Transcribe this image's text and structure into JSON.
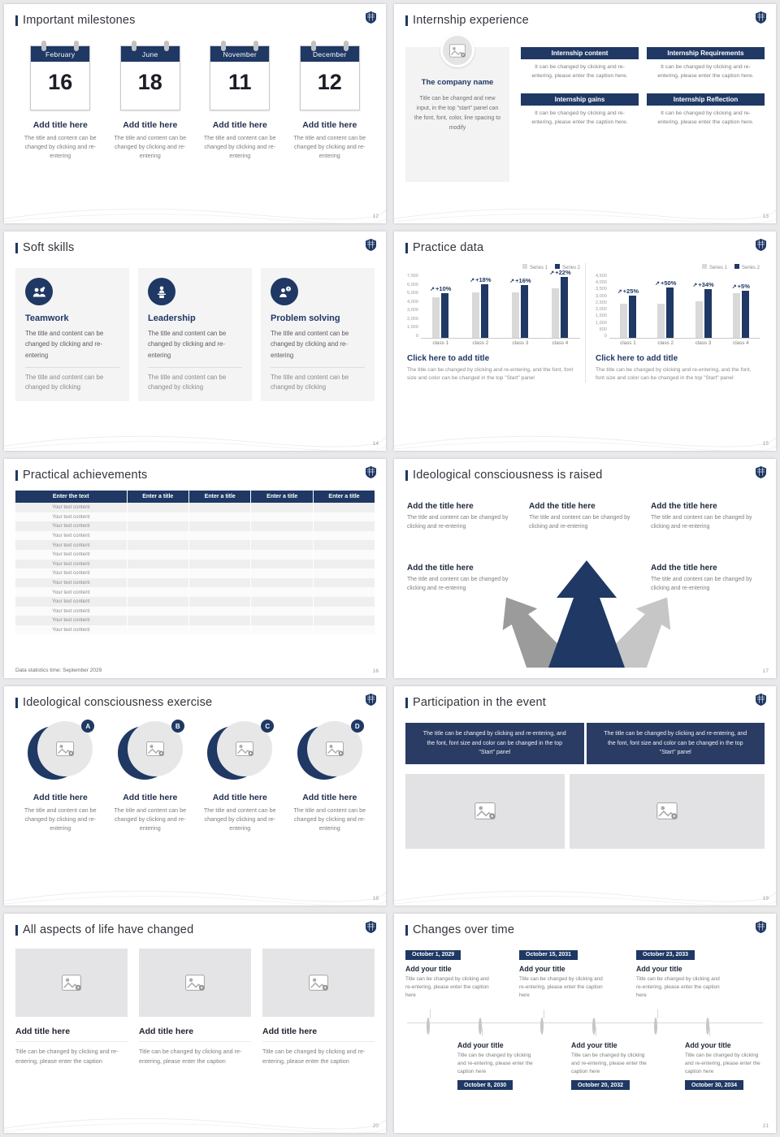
{
  "theme": {
    "navy": "#1f3864",
    "series1_color": "#d9d9d9",
    "series2_color": "#1f3864"
  },
  "slides": {
    "milestones": {
      "title": "Important milestones",
      "page": "12",
      "items": [
        {
          "month": "February",
          "day": "16",
          "heading": "Add title here",
          "caption": "The title and content can be changed by clicking and re-entering"
        },
        {
          "month": "June",
          "day": "18",
          "heading": "Add title here",
          "caption": "The title and content can be changed by clicking and re-entering"
        },
        {
          "month": "November",
          "day": "11",
          "heading": "Add title here",
          "caption": "The title and content can be changed by clicking and re-entering"
        },
        {
          "month": "December",
          "day": "12",
          "heading": "Add title here",
          "caption": "The title and content can be changed by clicking and re-entering"
        }
      ]
    },
    "internship": {
      "title": "Internship experience",
      "page": "13",
      "company_name": "The company name",
      "company_caption": "Title can be changed and new input, in the top \"start\" panel can the font, font, color, line spacing to modify",
      "blocks": [
        {
          "heading": "Internship content",
          "caption": "It can be changed by clicking and re-entering, please enter the caption here."
        },
        {
          "heading": "Internship Requirements",
          "caption": "It can be changed by clicking and re-entering, please enter the caption here."
        },
        {
          "heading": "Internship gains",
          "caption": "It can be changed by clicking and re-entering, please enter the caption here."
        },
        {
          "heading": "Internship Reflection",
          "caption": "It can be changed by clicking and re-entering, please enter the caption here."
        }
      ]
    },
    "soft_skills": {
      "title": "Soft skills",
      "page": "14",
      "cards": [
        {
          "icon": "teamwork-icon",
          "heading": "Teamwork",
          "body": "The title and content can be changed by clicking and re-entering",
          "note": "The title and content can be changed by clicking"
        },
        {
          "icon": "leadership-icon",
          "heading": "Leadership",
          "body": "The title and content can be changed by clicking and re-entering",
          "note": "The title and content can be changed by clicking"
        },
        {
          "icon": "problem-solving-icon",
          "heading": "Problem solving",
          "body": "The title and content can be changed by clicking and re-entering",
          "note": "The title and content can be changed by clicking"
        }
      ]
    },
    "practice_data": {
      "title": "Practice data",
      "page": "15",
      "chart_title": "Click here to add title",
      "chart_caption": "The title can be changed by clicking and re-entering, and the font, font size and color can be changed in the top \"Start\" panel"
    },
    "practical_achievements": {
      "title": "Practical achievements",
      "page": "16",
      "table": {
        "headers": [
          "Enter the text",
          "Enter a title",
          "Enter a title",
          "Enter a title",
          "Enter a title"
        ],
        "row_label": "Your text content",
        "row_count": 14
      },
      "note": "Data statistics time: September 2029"
    },
    "raised": {
      "title": "Ideological consciousness is raised",
      "page": "17",
      "heading": "Add the title here",
      "caption": "The title and content can be changed by clicking and re-entering"
    },
    "exercise": {
      "title": "Ideological consciousness exercise",
      "page": "18",
      "items": [
        {
          "letter": "A",
          "heading": "Add title here",
          "caption": "The title and content can be changed by clicking and re-entering"
        },
        {
          "letter": "B",
          "heading": "Add title here",
          "caption": "The title and content can be changed by clicking and re-entering"
        },
        {
          "letter": "C",
          "heading": "Add title here",
          "caption": "The title and content can be changed by clicking and re-entering"
        },
        {
          "letter": "D",
          "heading": "Add title here",
          "caption": "The title and content can be changed by clicking and re-entering"
        }
      ]
    },
    "participation": {
      "title": "Participation in the event",
      "page": "19",
      "block_text": "The title can be changed by clicking and re-entering, and the font, font size and color can be changed in the top \"Start\" panel"
    },
    "life_changed": {
      "title": "All aspects of life have changed",
      "page": "20",
      "items": [
        {
          "heading": "Add title here",
          "caption": "Title can be changed by clicking and re-entering, please enter the caption"
        },
        {
          "heading": "Add title here",
          "caption": "Title can be changed by clicking and re-entering, please enter the caption"
        },
        {
          "heading": "Add title here",
          "caption": "Title can be changed by clicking and re-entering, please enter the caption"
        }
      ]
    },
    "changes": {
      "title": "Changes over time",
      "page": "21",
      "item_title": "Add your title",
      "item_caption": "Title can be changed by clicking and re-entering, please enter the caption here",
      "top_dates": [
        "October 1, 2029",
        "October 15, 2031",
        "October 23, 2033"
      ],
      "bottom_dates": [
        "October 8, 2030",
        "October 20, 2032",
        "October 30, 2034"
      ]
    }
  },
  "chart_data": [
    {
      "type": "bar",
      "title": "Click here to add title",
      "categories": [
        "class 1",
        "class 2",
        "class 3",
        "class 4"
      ],
      "series": [
        {
          "name": "Series 1",
          "values": [
            4500,
            5000,
            5000,
            5500
          ]
        },
        {
          "name": "Series 2",
          "values": [
            4950,
            5900,
            5800,
            6700
          ]
        }
      ],
      "growth_labels": [
        "+10%",
        "+18%",
        "+16%",
        "+22%"
      ],
      "ylim": [
        0,
        7000
      ],
      "yticks": [
        0,
        1000,
        2000,
        3000,
        4000,
        5000,
        6000,
        7000
      ],
      "xlabel": "",
      "ylabel": "",
      "grid": false,
      "legend_position": "top-right"
    },
    {
      "type": "bar",
      "title": "Click here to add title",
      "categories": [
        "class 1",
        "class 2",
        "class 3",
        "class 4"
      ],
      "series": [
        {
          "name": "Series 1",
          "values": [
            2400,
            2400,
            2600,
            3200
          ]
        },
        {
          "name": "Series 2",
          "values": [
            3000,
            3600,
            3480,
            3360
          ]
        }
      ],
      "growth_labels": [
        "+25%",
        "+50%",
        "+34%",
        "+5%"
      ],
      "ylim": [
        0,
        4500
      ],
      "yticks": [
        0,
        500,
        1000,
        1500,
        2000,
        2500,
        3000,
        3500,
        4000,
        4500
      ],
      "xlabel": "",
      "ylabel": "",
      "grid": false,
      "legend_position": "top-right"
    }
  ]
}
